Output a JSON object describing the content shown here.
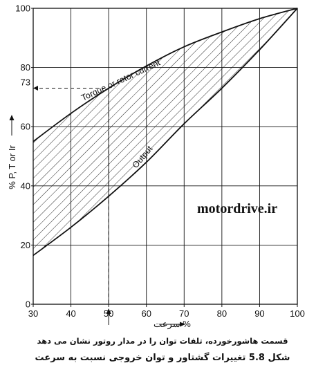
{
  "chart_data": {
    "type": "line",
    "x_ticks": [
      30,
      40,
      50,
      60,
      70,
      80,
      90,
      100
    ],
    "y_ticks": [
      0,
      20,
      40,
      60,
      80,
      100
    ],
    "xlim": [
      30,
      100
    ],
    "ylim": [
      0,
      100
    ],
    "grid": true,
    "xlabel": "% سرعت",
    "ylabel": "% P, T or Ir",
    "series": [
      {
        "name": "Torque or rotor current",
        "x": [
          30,
          40,
          50,
          60,
          70,
          80,
          90,
          100
        ],
        "y": [
          55,
          64.5,
          73,
          80.5,
          87,
          92,
          96.5,
          100
        ]
      },
      {
        "name": "Output",
        "x": [
          30,
          40,
          50,
          60,
          70,
          80,
          90,
          100
        ],
        "y": [
          16.5,
          26,
          36.5,
          48,
          61,
          73,
          86,
          100
        ]
      }
    ],
    "fill_between": "hatched",
    "annotations": [
      {
        "text": "73",
        "x": 50,
        "y": 73
      },
      {
        "text": "50",
        "x": 50,
        "y": 0
      }
    ],
    "watermark": "motordrive.ir"
  },
  "captions": {
    "note": "قسمت هاشورخورده، تلفات توان را در مدار روتور نشان می دهد",
    "figure": "شکل 5.8  تغییرات گشتاور و توان خروجی نسبت به سرعت"
  }
}
